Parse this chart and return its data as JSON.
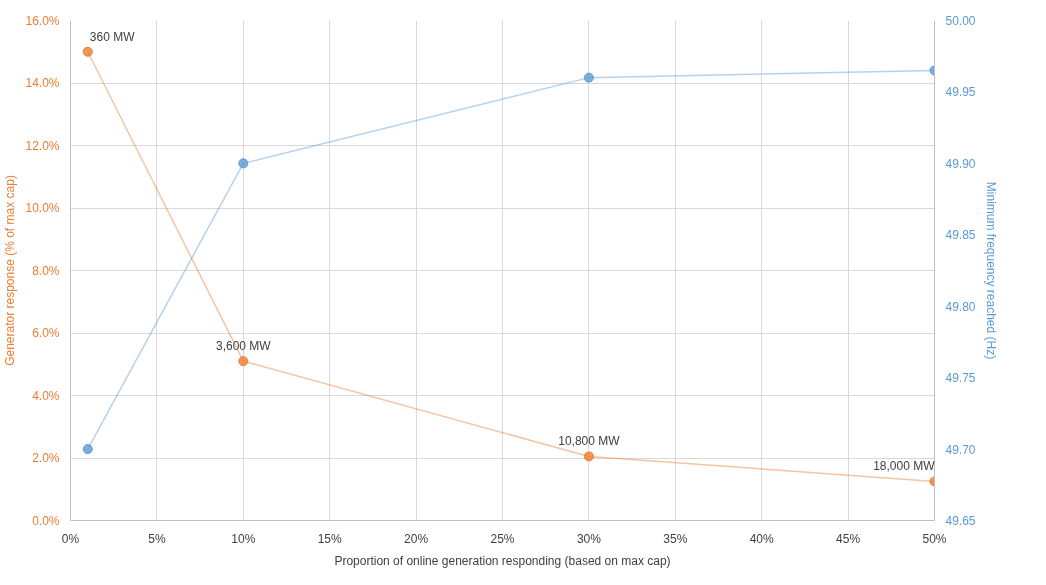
{
  "chart_data": {
    "type": "line",
    "xlabel": "Proportion of online generation responding (based on max cap)",
    "ylabel": "Generator response (% of max cap)",
    "y2label": "Minimum frequency reached (Hz)",
    "x": [
      1,
      10,
      30,
      50
    ],
    "series": [
      {
        "color": "#ed7d31",
        "values": [
          15.0,
          5.1,
          2.05,
          1.25
        ]
      },
      {
        "color": "#5b9bd5",
        "values": [
          49.7,
          49.9,
          49.96,
          49.965
        ],
        "axis": "y2"
      }
    ],
    "xlim": [
      0,
      50
    ],
    "xticks": [
      {
        "value": 0,
        "label": "0%"
      },
      {
        "value": 5,
        "label": "5%"
      },
      {
        "value": 10,
        "label": "10%"
      },
      {
        "value": 15,
        "label": "15%"
      },
      {
        "value": 20,
        "label": "20%"
      },
      {
        "value": 25,
        "label": "25%"
      },
      {
        "value": 30,
        "label": "30%"
      },
      {
        "value": 35,
        "label": "35%"
      },
      {
        "value": 40,
        "label": "40%"
      },
      {
        "value": 45,
        "label": "45%"
      },
      {
        "value": 50,
        "label": "50%"
      }
    ],
    "ylim": [
      0,
      16
    ],
    "yticks": [
      {
        "value": 0,
        "label": "0.0%"
      },
      {
        "value": 2,
        "label": "2.0%"
      },
      {
        "value": 4,
        "label": "4.0%"
      },
      {
        "value": 6,
        "label": "6.0%"
      },
      {
        "value": 8,
        "label": "8.0%"
      },
      {
        "value": 10,
        "label": "10.0%"
      },
      {
        "value": 12,
        "label": "12.0%"
      },
      {
        "value": 14,
        "label": "14.0%"
      },
      {
        "value": 16,
        "label": "16.0%"
      }
    ],
    "y2lim": [
      49.65,
      50.0
    ],
    "y2ticks": [
      {
        "value": 49.65,
        "label": "49.65"
      },
      {
        "value": 49.7,
        "label": "49.70"
      },
      {
        "value": 49.75,
        "label": "49.75"
      },
      {
        "value": 49.8,
        "label": "49.80"
      },
      {
        "value": 49.85,
        "label": "49.85"
      },
      {
        "value": 49.9,
        "label": "49.90"
      },
      {
        "value": 49.95,
        "label": "49.95"
      },
      {
        "value": 50.0,
        "label": "50.00"
      }
    ],
    "annotations": [
      {
        "text": "360 MW",
        "x": 1,
        "y": 15.0
      },
      {
        "text": "3,600 MW",
        "x": 10,
        "y": 5.1
      },
      {
        "text": "10,800 MW",
        "x": 30,
        "y": 2.05
      },
      {
        "text": "18,000 MW",
        "x": 50,
        "y": 1.25
      }
    ],
    "grid": true,
    "marker": "circle",
    "line_style": "solid"
  }
}
